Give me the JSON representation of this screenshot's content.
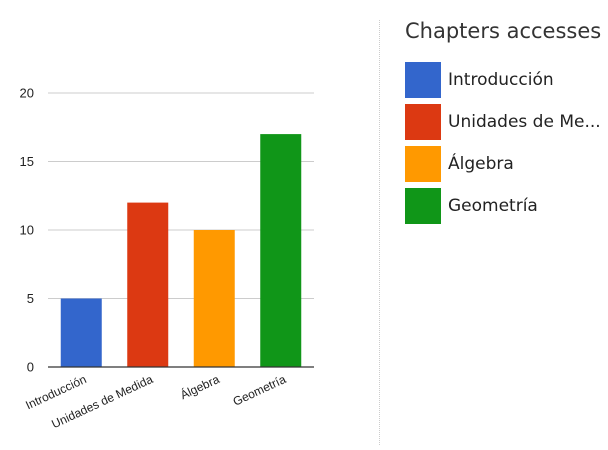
{
  "chart_data": {
    "type": "bar",
    "title": "",
    "xlabel": "",
    "ylabel": "",
    "categories": [
      "Introducción",
      "Unidades de Medida",
      "Álgebra",
      "Geometría"
    ],
    "values": [
      5,
      12,
      10,
      17
    ],
    "colors": [
      "#3366cc",
      "#dc3912",
      "#ff9900",
      "#109618"
    ],
    "ylim": [
      0,
      20
    ],
    "yticks": [
      0,
      5,
      10,
      15,
      20
    ],
    "grid": true,
    "legend_position": "right"
  },
  "legend": {
    "title": "Chapters accesses",
    "items": [
      "Introducción",
      "Unidades de Me...",
      "Álgebra",
      "Geometría"
    ]
  }
}
